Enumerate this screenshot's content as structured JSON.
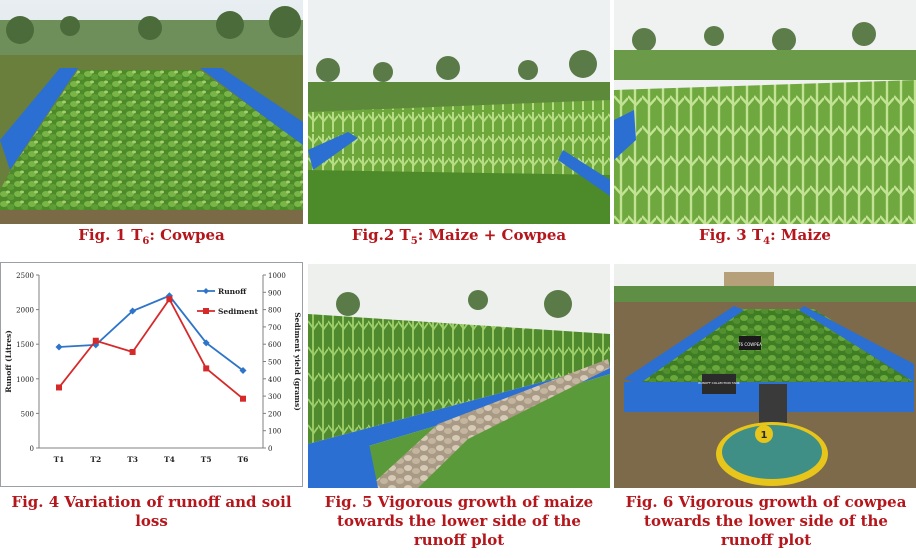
{
  "figures": [
    {
      "label": "Fig. 1 T",
      "sub": "6",
      "rest": ": Cowpea"
    },
    {
      "label": "Fig.2 T",
      "sub": "5",
      "rest": ": Maize + Cowpea"
    },
    {
      "label": "Fig. 3 T",
      "sub": "4",
      "rest": ": Maize"
    },
    {
      "caption": "Fig. 4 Variation of runoff and soil loss"
    },
    {
      "caption": "Fig. 5 Vigorous growth of maize towards the lower side of the runoff plot"
    },
    {
      "caption": "Fig. 6 Vigorous growth of cowpea towards the lower side of the runoff plot"
    }
  ],
  "photo6": {
    "sign1": "T6 COWPEA",
    "sign2": "RUNOFF COLLECTION TANK"
  },
  "chart_data": {
    "type": "line",
    "categories": [
      "T1",
      "T2",
      "T3",
      "T4",
      "T5",
      "T6"
    ],
    "ylabel": "Runoff (Litres)",
    "y2label": "Sediment yield (grams)",
    "ylim": [
      0,
      2500
    ],
    "y2lim": [
      0,
      1000
    ],
    "yticks": [
      "0",
      "500",
      "1000",
      "1500",
      "2000",
      "2500"
    ],
    "y2ticks": [
      "0",
      "100",
      "200",
      "300",
      "400",
      "500",
      "600",
      "700",
      "800",
      "900",
      "1000"
    ],
    "legend_position": "top-right",
    "series": [
      {
        "name": "Runoff",
        "axis": "left",
        "color": "#2e75c9",
        "values": [
          1460,
          1490,
          1980,
          2200,
          1520,
          1120
        ]
      },
      {
        "name": "Sediment",
        "axis": "right",
        "color": "#d62a2a",
        "values": [
          350,
          620,
          555,
          860,
          460,
          285
        ]
      }
    ]
  }
}
